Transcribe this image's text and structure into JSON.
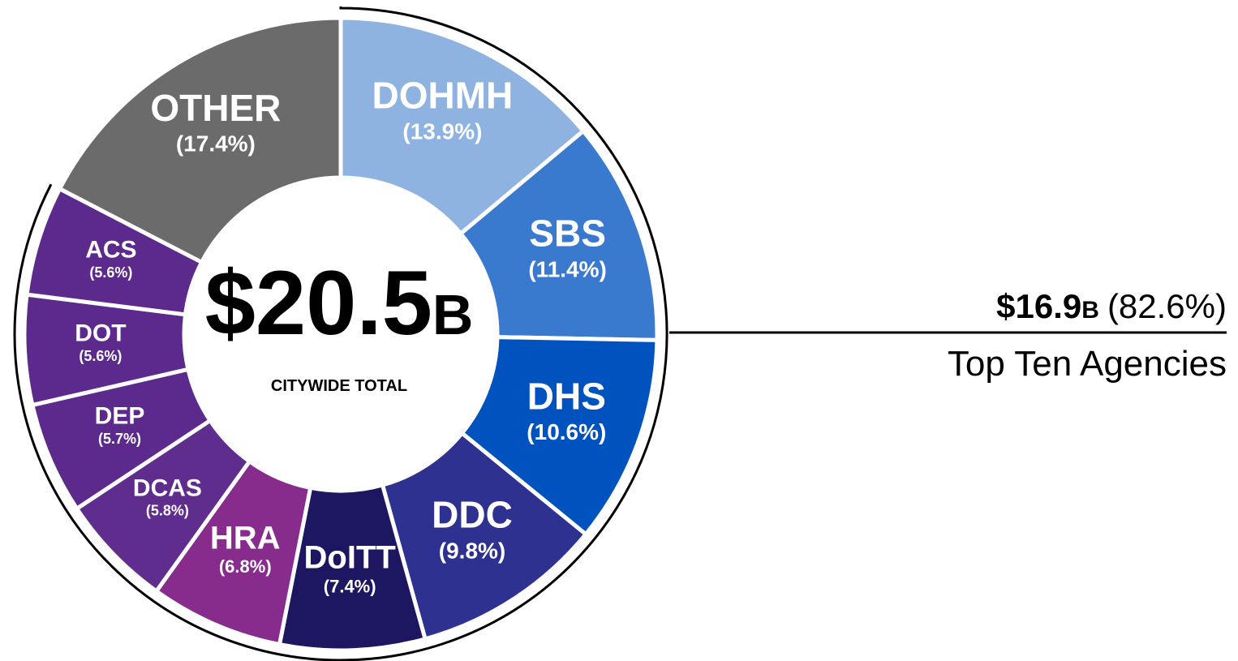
{
  "chart_data": {
    "type": "donut",
    "categories": [
      "DOHMH",
      "SBS",
      "DHS",
      "DDC",
      "DoITT",
      "HRA",
      "DCAS",
      "DEP",
      "DOT",
      "ACS",
      "OTHER"
    ],
    "values": [
      13.9,
      11.4,
      10.6,
      9.8,
      7.4,
      6.8,
      5.8,
      5.7,
      5.6,
      5.6,
      17.4
    ],
    "value_labels": [
      "(13.9%)",
      "(11.4%)",
      "(10.6%)",
      "(9.8%)",
      "(7.4%)",
      "(6.8%)",
      "(5.8%)",
      "(5.7%)",
      "(5.6%)",
      "(5.6%)",
      "(17.4%)"
    ],
    "colors": [
      "#8fb3e1",
      "#3a7ace",
      "#0052bf",
      "#2e3190",
      "#1d1660",
      "#872b8d",
      "#5e2d8e",
      "#5b2a8c",
      "#5b2a8c",
      "#5b2a8c",
      "#6b6b6b"
    ],
    "annotations": {
      "total": "$20.5",
      "total_unit": "B",
      "total_caption": "CITYWIDE TOTAL",
      "top_ten": "$16.9",
      "top_ten_unit": "B",
      "top_ten_share": "(82.6%)",
      "top_ten_caption": "Top Ten Agencies"
    }
  }
}
